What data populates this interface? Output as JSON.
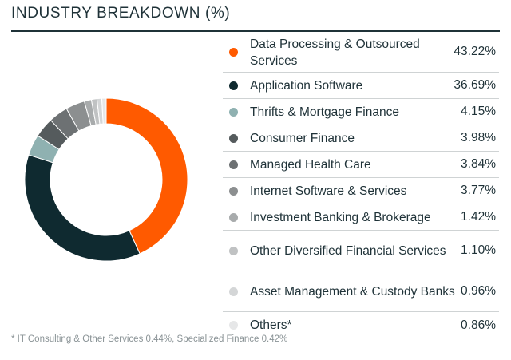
{
  "header": {
    "title": "INDUSTRY BREAKDOWN (%)"
  },
  "chart_data": {
    "type": "pie",
    "title": "INDUSTRY BREAKDOWN (%)",
    "style": "donut",
    "categories": [
      "Data Processing & Outsourced Services",
      "Application Software",
      "Thrifts & Mortgage Finance",
      "Consumer Finance",
      "Managed Health Care",
      "Internet Software & Services",
      "Investment Banking & Brokerage",
      "Other Diversified Financial Services",
      "Asset Management & Custody Banks",
      "Others*"
    ],
    "values": [
      43.22,
      36.69,
      4.15,
      3.98,
      3.84,
      3.77,
      1.42,
      1.1,
      0.96,
      0.86
    ],
    "value_labels": [
      "43.22%",
      "36.69%",
      "4.15%",
      "3.98%",
      "3.84%",
      "3.77%",
      "1.42%",
      "1.10%",
      "0.96%",
      "0.86%"
    ],
    "colors": [
      "#ff5a00",
      "#0f2a30",
      "#8fb1b1",
      "#555b5d",
      "#6d7173",
      "#8c8f90",
      "#a8abac",
      "#c0c2c3",
      "#d4d6d7",
      "#e6e7e8"
    ],
    "legend_position": "right"
  },
  "footnote": "* IT Consulting & Other Services 0.44%, Specialized Finance 0.42%"
}
